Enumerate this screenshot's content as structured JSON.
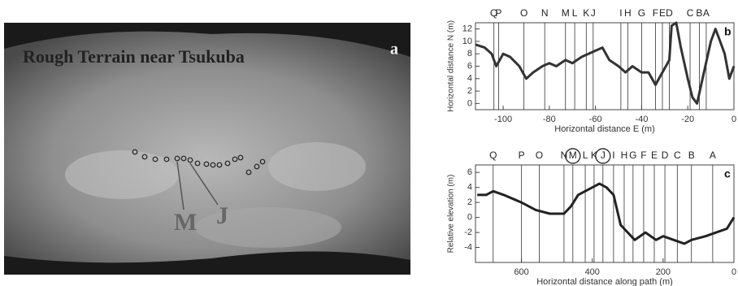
{
  "panel_a": {
    "title": "Rough Terrain near Tsukuba",
    "letter": "a",
    "label_m": "M",
    "label_j": "J"
  },
  "chart_data": [
    {
      "type": "line",
      "panel": "b",
      "y_label": "Horizontal distance N (m)",
      "x_label": "Horizontal distance E (m)",
      "xlim": [
        -112,
        0
      ],
      "xticks": [
        -100,
        -80,
        -60,
        -40,
        -20,
        0
      ],
      "ylim": [
        -1,
        13
      ],
      "yticks": [
        0,
        2,
        4,
        6,
        8,
        10,
        12
      ],
      "annotations": [
        {
          "text": "Q",
          "x": -104
        },
        {
          "text": "P",
          "x": -102
        },
        {
          "text": "O",
          "x": -91
        },
        {
          "text": "N",
          "x": -82
        },
        {
          "text": "M",
          "x": -73
        },
        {
          "text": "L",
          "x": -69
        },
        {
          "text": "K",
          "x": -64
        },
        {
          "text": "J",
          "x": -61
        },
        {
          "text": "I",
          "x": -49
        },
        {
          "text": "H",
          "x": -46
        },
        {
          "text": "G",
          "x": -40
        },
        {
          "text": "F",
          "x": -34
        },
        {
          "text": "E",
          "x": -31
        },
        {
          "text": "D",
          "x": -28
        },
        {
          "text": "C",
          "x": -19
        },
        {
          "text": "B",
          "x": -15
        },
        {
          "text": "A",
          "x": -12
        }
      ],
      "series": [
        {
          "color": "#333333",
          "x": [
            -112,
            -108,
            -105,
            -103,
            -100,
            -97,
            -93,
            -90,
            -87,
            -83,
            -80,
            -77,
            -73,
            -70,
            -66,
            -63,
            -60,
            -57,
            -54,
            -50,
            -47,
            -44,
            -40,
            -37,
            -34,
            -31,
            -28,
            -27,
            -25,
            -23,
            -20,
            -18,
            -16,
            -13,
            -10,
            -8,
            -6,
            -4,
            -2,
            0
          ],
          "values": [
            9.5,
            9,
            8,
            6,
            8,
            7.5,
            6,
            4,
            5,
            6,
            6.5,
            6,
            7,
            6.5,
            7.5,
            8,
            8.5,
            9,
            7,
            6,
            5,
            6,
            5,
            5,
            3,
            5,
            7,
            12.5,
            13,
            9,
            4,
            1,
            0,
            5,
            10,
            12,
            10,
            8,
            4,
            6
          ]
        }
      ]
    },
    {
      "type": "line",
      "panel": "c",
      "y_label": "Relative elevation (m)",
      "x_label": "Horizontal distance along path (m)",
      "xlim": [
        730,
        0
      ],
      "xticks": [
        600,
        400,
        200,
        0
      ],
      "ylim": [
        -6,
        7
      ],
      "yticks": [
        -4,
        -2,
        0,
        2,
        4,
        6
      ],
      "annotations": [
        {
          "text": "Q",
          "x": 680
        },
        {
          "text": "P",
          "x": 600
        },
        {
          "text": "O",
          "x": 550
        },
        {
          "text": "N",
          "x": 480
        },
        {
          "text": "M",
          "x": 455
        },
        {
          "text": "L",
          "x": 420
        },
        {
          "text": "K",
          "x": 395
        },
        {
          "text": "J",
          "x": 370
        },
        {
          "text": "I",
          "x": 340
        },
        {
          "text": "H",
          "x": 310
        },
        {
          "text": "G",
          "x": 285
        },
        {
          "text": "F",
          "x": 255
        },
        {
          "text": "E",
          "x": 225
        },
        {
          "text": "D",
          "x": 195
        },
        {
          "text": "C",
          "x": 160
        },
        {
          "text": "B",
          "x": 120
        },
        {
          "text": "A",
          "x": 60
        }
      ],
      "series": [
        {
          "color": "#222222",
          "x": [
            725,
            700,
            680,
            650,
            600,
            560,
            520,
            480,
            460,
            440,
            420,
            400,
            380,
            360,
            340,
            320,
            300,
            280,
            250,
            220,
            200,
            170,
            140,
            120,
            80,
            50,
            20,
            0
          ],
          "values": [
            3,
            3,
            3.5,
            3,
            2,
            1,
            0.5,
            0.5,
            1.5,
            3,
            3.5,
            4,
            4.5,
            4,
            3,
            -1,
            -2,
            -3,
            -2,
            -3,
            -2.5,
            -3,
            -3.5,
            -3,
            -2.5,
            -2,
            -1.5,
            0
          ]
        }
      ]
    }
  ]
}
